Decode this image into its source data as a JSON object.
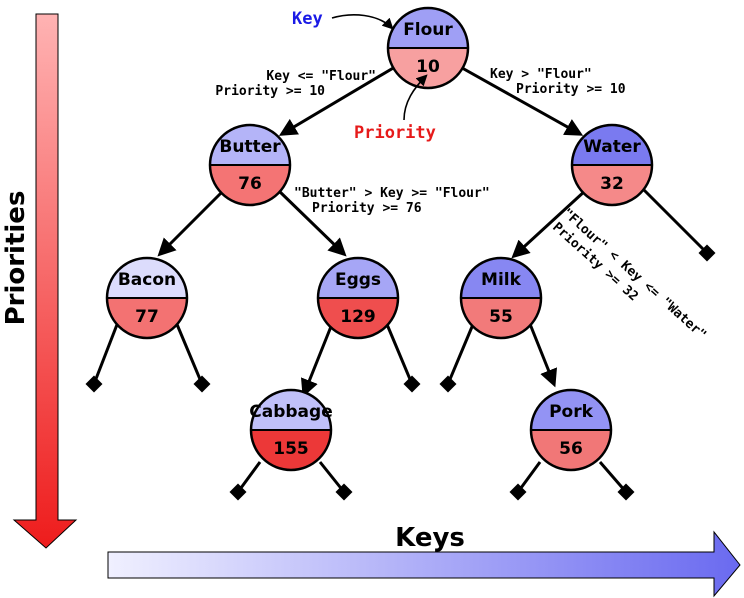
{
  "axes": {
    "priorities_label": "Priorities",
    "keys_label": "Keys"
  },
  "callouts": {
    "key_label": "Key",
    "priority_label": "Priority",
    "key_color": "#1a1ae6",
    "priority_color": "#e61a1a"
  },
  "nodes": {
    "flour": {
      "key": "Flour",
      "priority": "10",
      "key_fill": "#9f9ff5",
      "pri_fill": "#f7a0a0"
    },
    "butter": {
      "key": "Butter",
      "priority": "76",
      "key_fill": "#b4b4f8",
      "pri_fill": "#f47474"
    },
    "water": {
      "key": "Water",
      "priority": "32",
      "key_fill": "#7a7af0",
      "pri_fill": "#f58989"
    },
    "bacon": {
      "key": "Bacon",
      "priority": "77",
      "key_fill": "#dcdcfc",
      "pri_fill": "#f37272"
    },
    "eggs": {
      "key": "Eggs",
      "priority": "129",
      "key_fill": "#a6a6f6",
      "pri_fill": "#ef4e4e"
    },
    "milk": {
      "key": "Milk",
      "priority": "55",
      "key_fill": "#8787f2",
      "pri_fill": "#f27a7a"
    },
    "cabbage": {
      "key": "Cabbage",
      "priority": "155",
      "key_fill": "#c0c0f9",
      "pri_fill": "#ec3838"
    },
    "pork": {
      "key": "Pork",
      "priority": "56",
      "key_fill": "#9393f4",
      "pri_fill": "#f17777"
    }
  },
  "conditions": {
    "flour_left_line1": "Key <= \"Flour\"",
    "flour_left_line2": "Priority >= 10",
    "flour_right_line1": "Key > \"Flour\"",
    "flour_right_line2": "Priority >= 10",
    "butter_right_line1": "\"Butter\" > Key >= \"Flour\"",
    "butter_right_line2": "Priority >= 76",
    "water_left_line1": "\"Flour\" < Key <= \"Water\"",
    "water_left_line2": "Priority >= 32"
  },
  "colors": {
    "priority_arrow_top": "#ffb3b3",
    "priority_arrow_bottom": "#ee1c1c",
    "keys_arrow_left": "#f0f0ff",
    "keys_arrow_right": "#6a6af0"
  }
}
